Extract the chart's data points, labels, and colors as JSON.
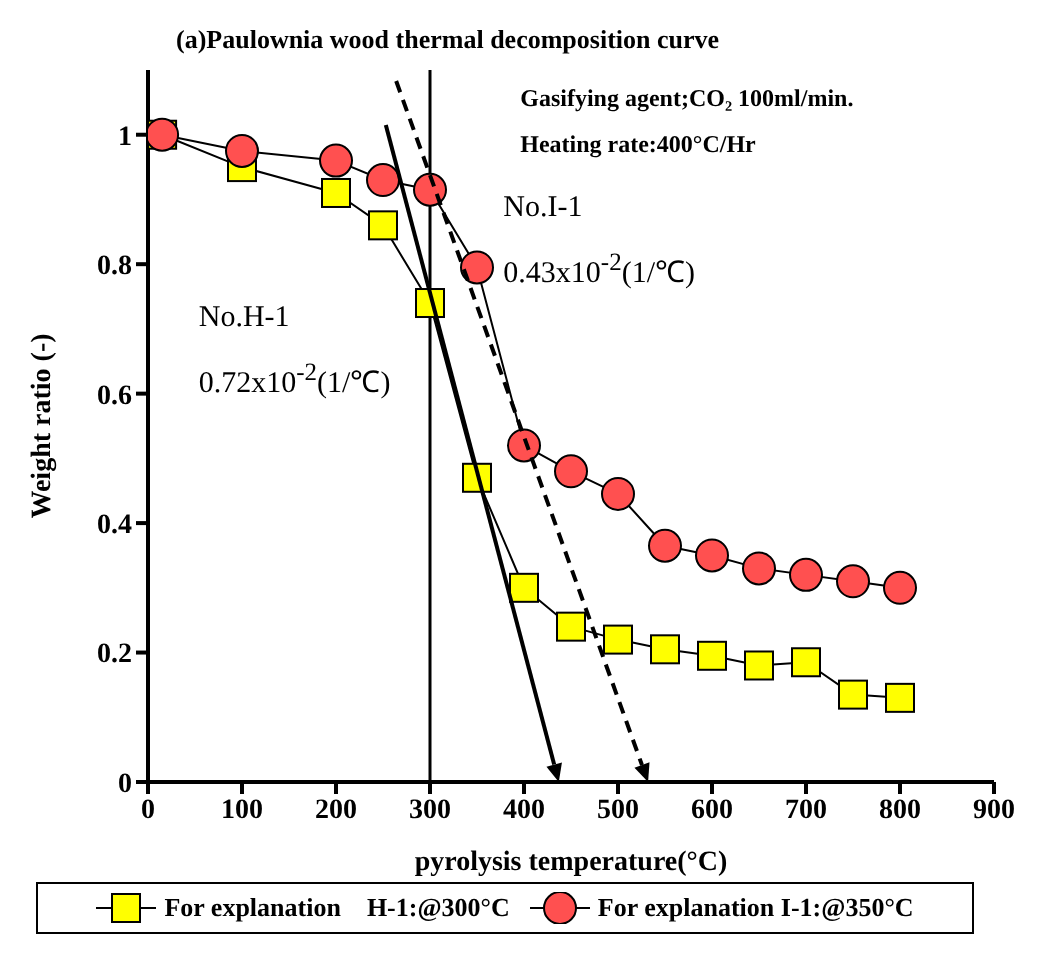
{
  "chart_data": {
    "type": "line",
    "title": "(a)Paulownia wood thermal decomposition curve",
    "xlabel": "pyrolysis temperature(°C)",
    "ylabel": "Weight ratio (-)",
    "x": [
      15,
      100,
      200,
      250,
      300,
      350,
      400,
      450,
      500,
      550,
      600,
      650,
      700,
      750,
      800
    ],
    "series": [
      {
        "name": "For explanation　H-1:@300°C",
        "color": "#ffff00",
        "marker": "square",
        "values": [
          1.0,
          0.95,
          0.91,
          0.86,
          0.74,
          0.47,
          0.3,
          0.24,
          0.22,
          0.205,
          0.195,
          0.18,
          0.185,
          0.135,
          0.13
        ]
      },
      {
        "name": "For explanation I-1:@350°C",
        "color": "#ff5050",
        "marker": "circle",
        "values": [
          1.0,
          0.975,
          0.96,
          0.93,
          0.915,
          0.795,
          0.52,
          0.48,
          0.445,
          0.365,
          0.35,
          0.33,
          0.32,
          0.31,
          0.3
        ]
      }
    ],
    "xlim": [
      0,
      900
    ],
    "xticks": [
      0,
      100,
      200,
      300,
      400,
      500,
      600,
      700,
      800,
      900
    ],
    "ylim": [
      0,
      1.1
    ],
    "yticks": [
      0,
      0.2,
      0.4,
      0.6,
      0.8,
      1
    ],
    "ref_lines": [
      {
        "axis": "x",
        "value": 300,
        "color": "#000000"
      }
    ],
    "annotations": [
      "Gasifying agent;CO₂ 100ml/min.",
      "Heating rate:400°C/Hr",
      "No.H-1",
      "0.72x10$^{-2}$(1/℃)",
      "No.I-1",
      "0.43x10$^{-2}$(1/℃)"
    ],
    "grid": false,
    "legend": "bottom"
  }
}
